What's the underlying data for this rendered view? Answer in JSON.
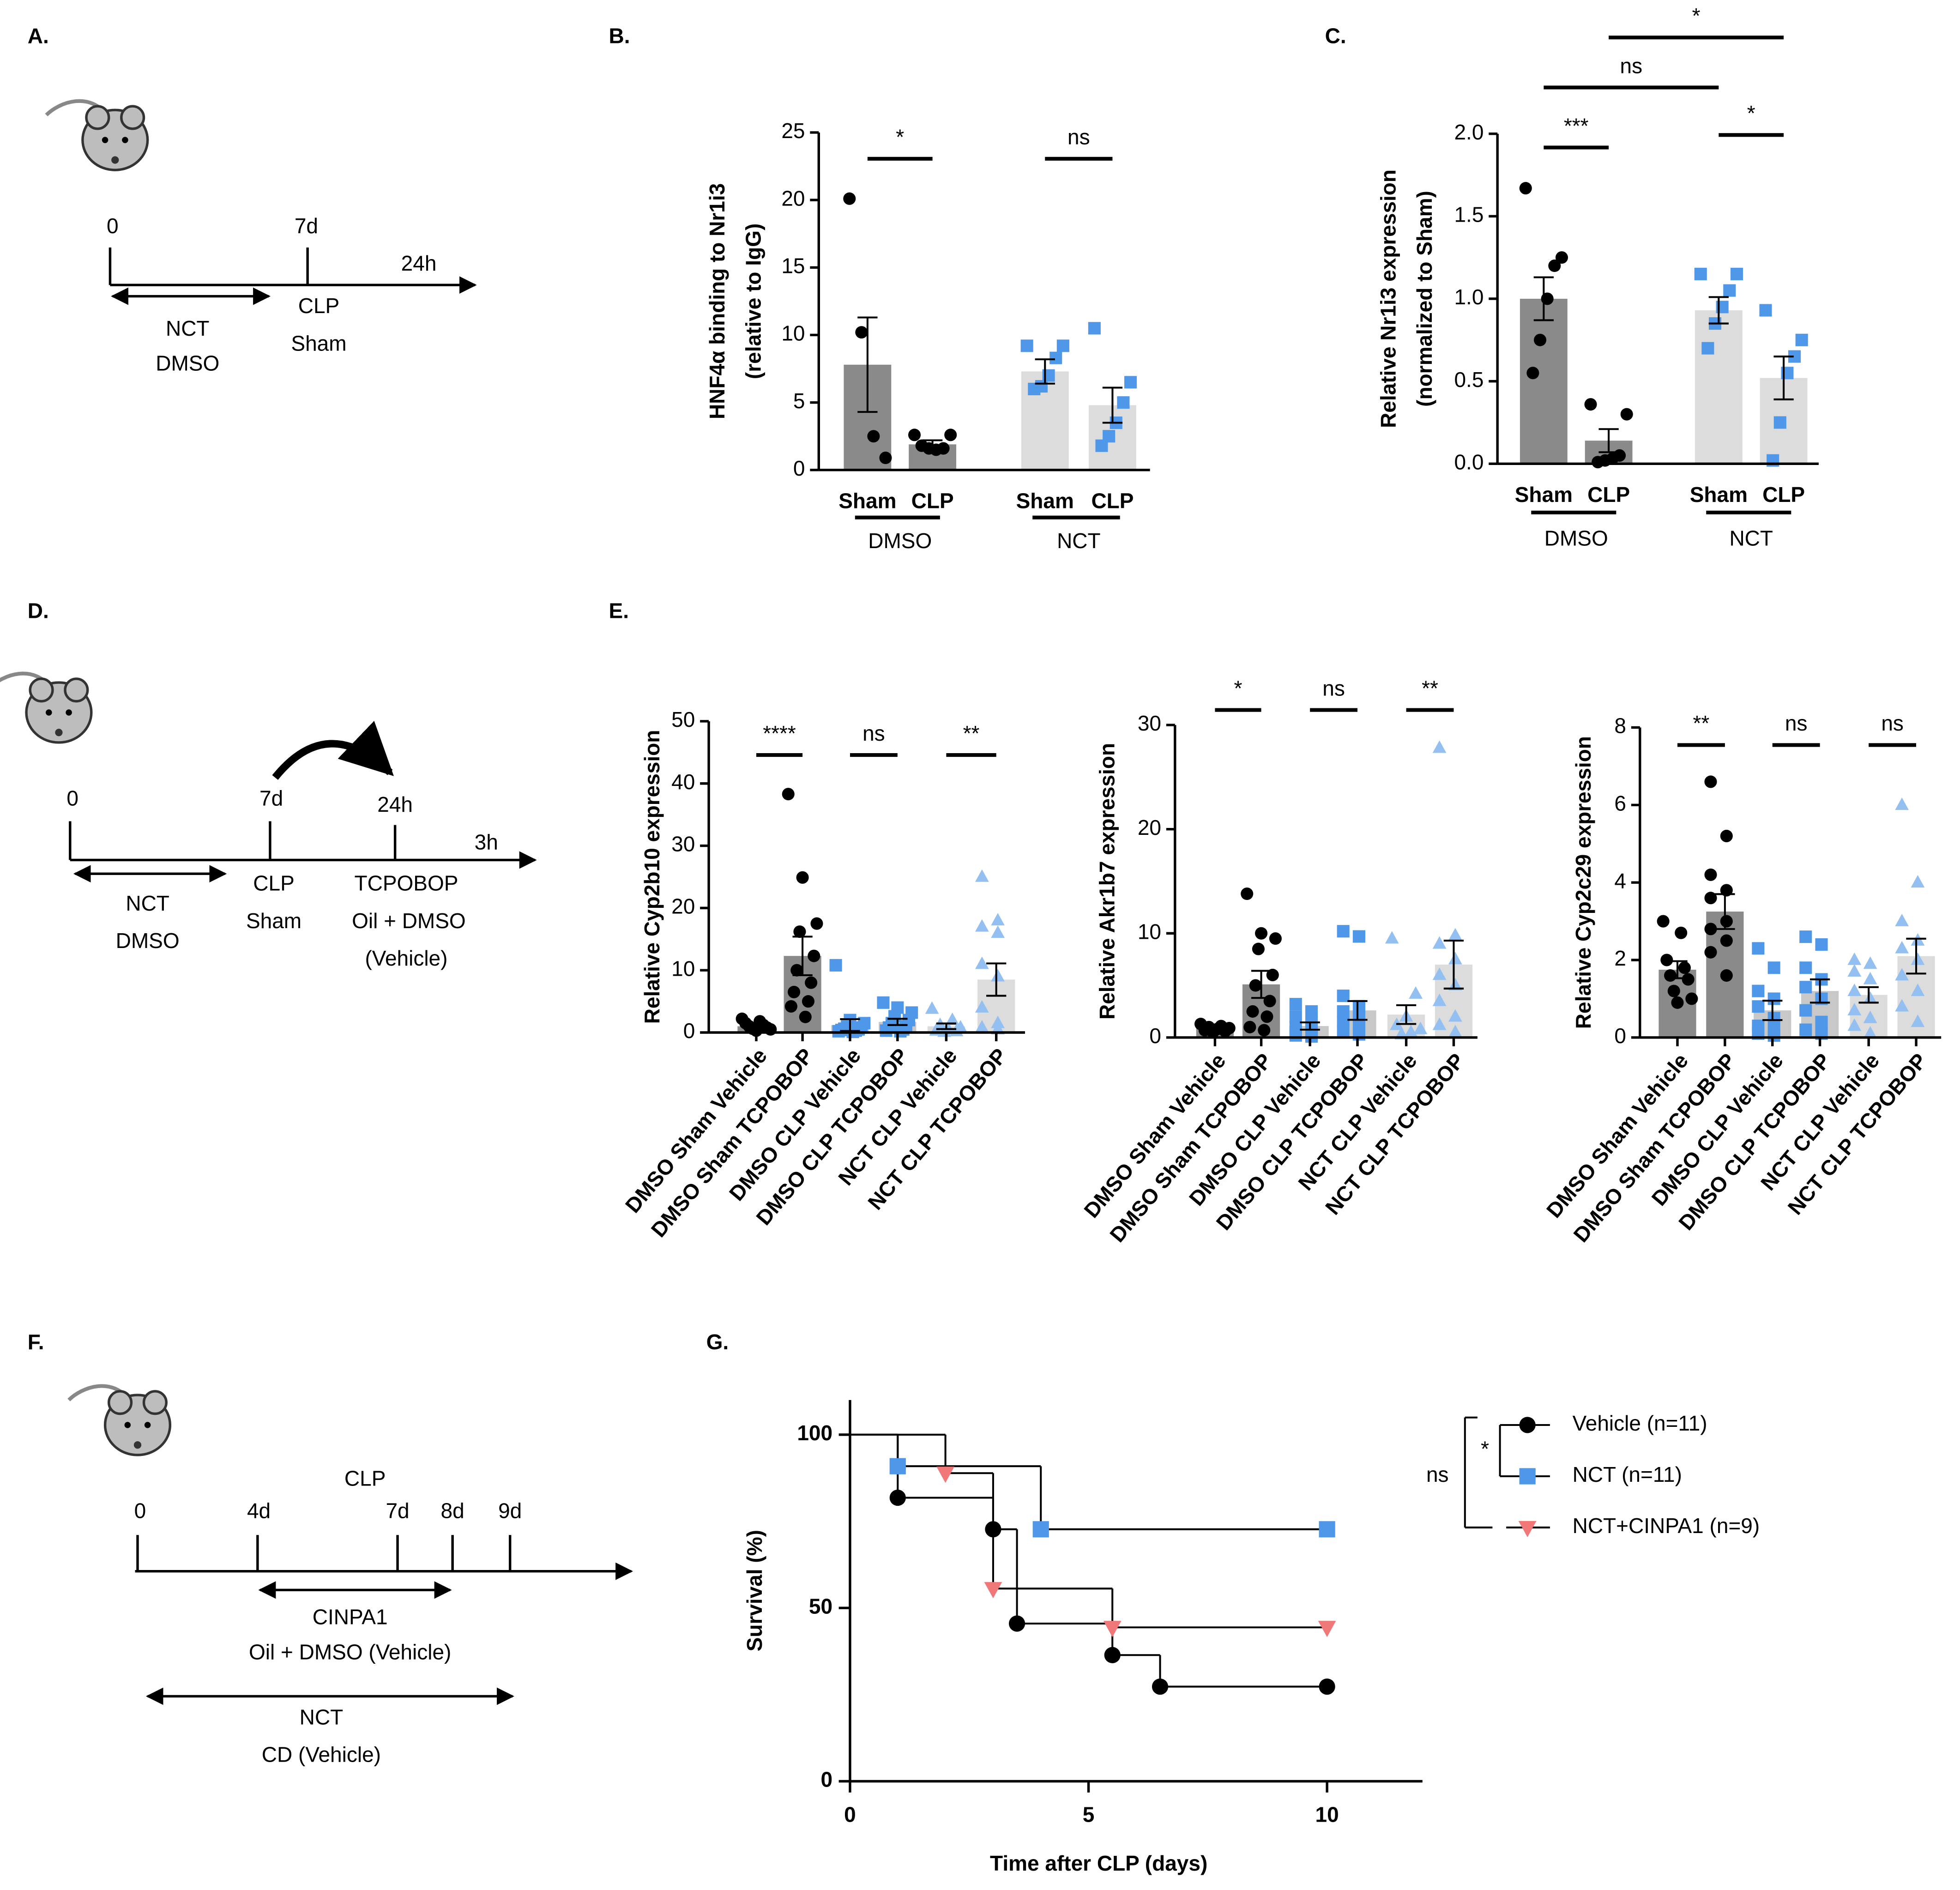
{
  "chart_data": [
    {
      "type": "bar",
      "panel_label": "B.",
      "ylabel": [
        "HNF4α binding to Nr1i3",
        "(relative to IgG)"
      ],
      "categories": [
        "Sham",
        "CLP",
        "Sham",
        "CLP"
      ],
      "group_labels": [
        "DMSO",
        "NCT"
      ],
      "values": [
        7.8,
        1.9,
        7.3,
        4.8
      ],
      "errors": [
        3.5,
        0.3,
        0.9,
        1.3
      ],
      "points": [
        [
          20.1,
          10.2,
          2.5,
          0.9
        ],
        [
          2.6,
          2.6,
          1.6,
          1.5,
          1.6,
          1.8
        ],
        [
          9.2,
          9.2,
          8.3,
          7.0,
          6.2,
          6.0
        ],
        [
          10.5,
          6.5,
          5.0,
          3.5,
          2.5,
          1.8
        ]
      ],
      "bar_colors": [
        "#8a8a8a",
        "#8a8a8a",
        "#dcdcdc",
        "#dcdcdc"
      ],
      "point_colors": [
        "#000000",
        "#000000",
        "#4f97e8",
        "#4f97e8"
      ],
      "markers": [
        "circle",
        "circle",
        "square",
        "square"
      ],
      "ylim": [
        0,
        25
      ],
      "yticks": [
        0,
        5,
        10,
        15,
        20,
        25
      ],
      "significance": [
        "*",
        "ns"
      ]
    },
    {
      "type": "bar",
      "panel_label": "C.",
      "ylabel": [
        "Relative Nr1i3 expression",
        "(normalized to Sham)"
      ],
      "categories": [
        "Sham",
        "CLP",
        "Sham",
        "CLP"
      ],
      "group_labels": [
        "DMSO",
        "NCT"
      ],
      "values": [
        1.0,
        0.14,
        0.93,
        0.52
      ],
      "errors": [
        0.13,
        0.07,
        0.08,
        0.13
      ],
      "points": [
        [
          1.67,
          1.25,
          1.2,
          1.0,
          0.75,
          0.55
        ],
        [
          0.36,
          0.3,
          0.05,
          0.03,
          0.02,
          0.01
        ],
        [
          1.15,
          1.15,
          1.05,
          0.95,
          0.85,
          0.7
        ],
        [
          0.93,
          0.75,
          0.65,
          0.55,
          0.25,
          0.02
        ]
      ],
      "bar_colors": [
        "#8a8a8a",
        "#8a8a8a",
        "#dcdcdc",
        "#dcdcdc"
      ],
      "point_colors": [
        "#000000",
        "#000000",
        "#4f97e8",
        "#4f97e8"
      ],
      "markers": [
        "circle",
        "circle",
        "square",
        "square"
      ],
      "ylim": [
        0,
        2
      ],
      "yticks": [
        {
          "value": 0,
          "label": "0.0"
        },
        0.5,
        {
          "value": 1,
          "label": "1.0"
        },
        1.5,
        {
          "value": 2,
          "label": "2.0"
        }
      ],
      "significance": [
        "***",
        "*",
        "ns",
        "*"
      ]
    },
    {
      "type": "bar",
      "panel_label": "E.",
      "ylabel": [
        "Relative Cyp2b10 expression"
      ],
      "categories": [
        "DMSO Sham Vehicle",
        "DMSO Sham TCPOBOP",
        "DMSO CLP Vehicle",
        "DMSO CLP TCPOBOP",
        "NCT CLP Vehicle",
        "NCT CLP TCPOBOP"
      ],
      "values": [
        1.0,
        12.3,
        1.2,
        1.7,
        1.0,
        8.5
      ],
      "errors": [
        0.25,
        3.1,
        0.95,
        0.5,
        0.45,
        2.6
      ],
      "points": [
        [
          2.2,
          1.8,
          1.5,
          1.2,
          1.0,
          0.8,
          0.6,
          0.5,
          0.3
        ],
        [
          38.3,
          24.9,
          17.5,
          16.2,
          12.3,
          10.0,
          8.0,
          6.5,
          5.0,
          4.2,
          2.5
        ],
        [
          10.8,
          2.0,
          1.5,
          1.0,
          0.8,
          0.6,
          0.5,
          0.4,
          0.3,
          0.2,
          0.1
        ],
        [
          4.8,
          4.0,
          3.2,
          2.6,
          2.0,
          1.5,
          1.0,
          0.8,
          0.5,
          0.3,
          0.2
        ],
        [
          3.8,
          2.0,
          1.2,
          0.8,
          0.5,
          0.3,
          0.2,
          0.1
        ],
        [
          25.0,
          18.0,
          17.0,
          16.0,
          11.0,
          9.0,
          4.0,
          1.5,
          0.8,
          0.5
        ]
      ],
      "bar_colors": [
        "#8a8a8a",
        "#8a8a8a",
        "#c8c8c8",
        "#c8c8c8",
        "#dcdcdc",
        "#dcdcdc"
      ],
      "point_colors": [
        "#000000",
        "#000000",
        "#4f97e8",
        "#4f97e8",
        "#93c0f0",
        "#93c0f0"
      ],
      "markers": [
        "circle",
        "circle",
        "square",
        "square",
        "triangle",
        "triangle"
      ],
      "ylim": [
        0,
        50
      ],
      "yticks": [
        0,
        10,
        20,
        30,
        40,
        50
      ],
      "significance": [
        "****",
        "ns",
        "**"
      ]
    },
    {
      "type": "bar",
      "ylabel": [
        "Relative Akr1b7 expression"
      ],
      "categories": [
        "DMSO Sham Vehicle",
        "DMSO Sham TCPOBOP",
        "DMSO CLP Vehicle",
        "DMSO CLP TCPOBOP",
        "NCT CLP Vehicle",
        "NCT CLP TCPOBOP"
      ],
      "values": [
        0.9,
        5.1,
        1.1,
        2.6,
        2.2,
        7.0
      ],
      "errors": [
        0.1,
        1.3,
        0.35,
        0.9,
        0.9,
        2.3
      ],
      "points": [
        [
          1.3,
          1.1,
          1.0,
          0.9,
          0.8,
          0.7,
          0.6,
          0.5
        ],
        [
          13.8,
          10.0,
          9.5,
          8.5,
          6.0,
          5.0,
          3.5,
          2.5,
          2.0,
          1.0,
          0.7
        ],
        [
          3.2,
          2.5,
          2.0,
          1.5,
          1.0,
          0.8,
          0.5,
          0.3,
          0.2,
          0.1
        ],
        [
          10.2,
          9.7,
          4.0,
          3.0,
          2.5,
          2.0,
          1.5,
          1.0,
          0.6,
          0.3
        ],
        [
          9.5,
          4.2,
          2.0,
          1.2,
          0.8,
          0.5,
          0.3
        ],
        [
          27.8,
          9.8,
          9.0,
          7.5,
          6.0,
          5.0,
          3.5,
          2.0,
          1.2,
          0.5
        ]
      ],
      "bar_colors": [
        "#8a8a8a",
        "#8a8a8a",
        "#c8c8c8",
        "#c8c8c8",
        "#dcdcdc",
        "#dcdcdc"
      ],
      "point_colors": [
        "#000000",
        "#000000",
        "#4f97e8",
        "#4f97e8",
        "#93c0f0",
        "#93c0f0"
      ],
      "markers": [
        "circle",
        "circle",
        "square",
        "square",
        "triangle",
        "triangle"
      ],
      "ylim": [
        0,
        30
      ],
      "yticks": [
        0,
        10,
        20,
        30
      ],
      "significance": [
        "*",
        "ns",
        "**"
      ]
    },
    {
      "type": "bar",
      "ylabel": [
        "Relative Cyp2c29 expression"
      ],
      "categories": [
        "DMSO Sham Vehicle",
        "DMSO Sham TCPOBOP",
        "DMSO CLP Vehicle",
        "DMSO CLP TCPOBOP",
        "NCT CLP Vehicle",
        "NCT CLP TCPOBOP"
      ],
      "values": [
        1.75,
        3.25,
        0.7,
        1.2,
        1.1,
        2.1
      ],
      "errors": [
        0.22,
        0.45,
        0.25,
        0.3,
        0.2,
        0.45
      ],
      "points": [
        [
          3.0,
          2.7,
          2.0,
          1.8,
          1.6,
          1.5,
          1.2,
          1.0,
          0.9
        ],
        [
          6.6,
          5.2,
          4.2,
          3.8,
          3.6,
          3.0,
          2.8,
          2.5,
          2.2,
          1.6
        ],
        [
          2.3,
          1.8,
          1.2,
          1.0,
          0.8,
          0.5,
          0.3,
          0.2,
          0.1,
          0.05
        ],
        [
          2.6,
          2.4,
          1.8,
          1.5,
          1.3,
          1.0,
          0.7,
          0.4,
          0.2,
          0.1
        ],
        [
          2.0,
          1.9,
          1.7,
          1.5,
          1.2,
          1.0,
          0.7,
          0.5,
          0.3,
          0.1
        ],
        [
          6.0,
          4.0,
          3.0,
          2.5,
          2.3,
          2.0,
          1.6,
          1.2,
          0.8,
          0.4
        ]
      ],
      "bar_colors": [
        "#8a8a8a",
        "#8a8a8a",
        "#c8c8c8",
        "#c8c8c8",
        "#dcdcdc",
        "#dcdcdc"
      ],
      "point_colors": [
        "#000000",
        "#000000",
        "#4f97e8",
        "#4f97e8",
        "#93c0f0",
        "#93c0f0"
      ],
      "markers": [
        "circle",
        "circle",
        "square",
        "square",
        "triangle",
        "triangle"
      ],
      "ylim": [
        0,
        8
      ],
      "yticks": [
        0,
        2,
        4,
        6,
        8
      ],
      "significance": [
        "**",
        "ns",
        "ns"
      ]
    },
    {
      "type": "line",
      "step": true,
      "panel_label": "G.",
      "xlabel": "Time after CLP (days)",
      "ylabel": "Survival (%)",
      "xlim": [
        0,
        12
      ],
      "ylim": [
        0,
        110
      ],
      "xticks": [
        0,
        5,
        10
      ],
      "yticks": [
        0,
        50,
        100
      ],
      "series": [
        {
          "name": "Vehicle (n=11)",
          "color": "#000000",
          "marker": "circle",
          "x": [
            0,
            1,
            3,
            3.5,
            5.5,
            6.5,
            10
          ],
          "values": [
            100,
            81.8,
            72.7,
            45.5,
            36.4,
            27.3,
            27.3
          ]
        },
        {
          "name": "NCT (n=11)",
          "color": "#4f97e8",
          "marker": "square",
          "x": [
            0,
            1,
            4,
            10
          ],
          "values": [
            100,
            90.9,
            72.7,
            72.7
          ]
        },
        {
          "name": "NCT+CINPA1 (n=9)",
          "color": "#f07878",
          "marker": "triangle-down",
          "x": [
            0,
            2,
            3,
            5.5,
            10
          ],
          "values": [
            100,
            88.9,
            55.6,
            44.4,
            44.4
          ]
        }
      ],
      "significance": [
        "*",
        "ns"
      ]
    }
  ],
  "diagrams": {
    "A": {
      "texts": [
        "A.",
        "0",
        "7d",
        "24h",
        "CLP",
        "Sham",
        "NCT",
        "DMSO"
      ]
    },
    "D": {
      "texts": [
        "D.",
        "0",
        "7d",
        "24h",
        "3h",
        "NCT",
        "DMSO",
        "CLP",
        "Sham",
        "TCPOBOP",
        "Oil + DMSO",
        "(Vehicle)"
      ]
    },
    "F": {
      "texts": [
        "F.",
        "0",
        "4d",
        "7d",
        "8d",
        "9d",
        "CLP",
        "CINPA1",
        "Oil + DMSO (Vehicle)",
        "NCT",
        "CD (Vehicle)"
      ]
    }
  }
}
